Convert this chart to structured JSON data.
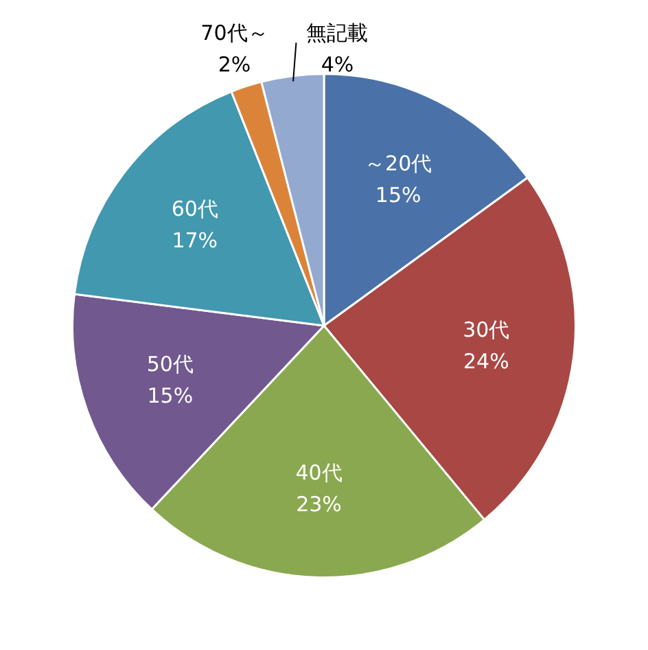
{
  "chart_data": {
    "type": "pie",
    "categories": [
      "～20代",
      "30代",
      "40代",
      "50代",
      "60代",
      "70代～",
      "無記載"
    ],
    "values": [
      15,
      24,
      23,
      15,
      17,
      2,
      4
    ],
    "value_labels": [
      "15%",
      "24%",
      "23%",
      "15%",
      "17%",
      "2%",
      "4%"
    ],
    "colors": [
      "#4a72a8",
      "#a84744",
      "#8aa84f",
      "#71588f",
      "#4198af",
      "#db8439",
      "#93a9cf"
    ],
    "legend": false
  }
}
